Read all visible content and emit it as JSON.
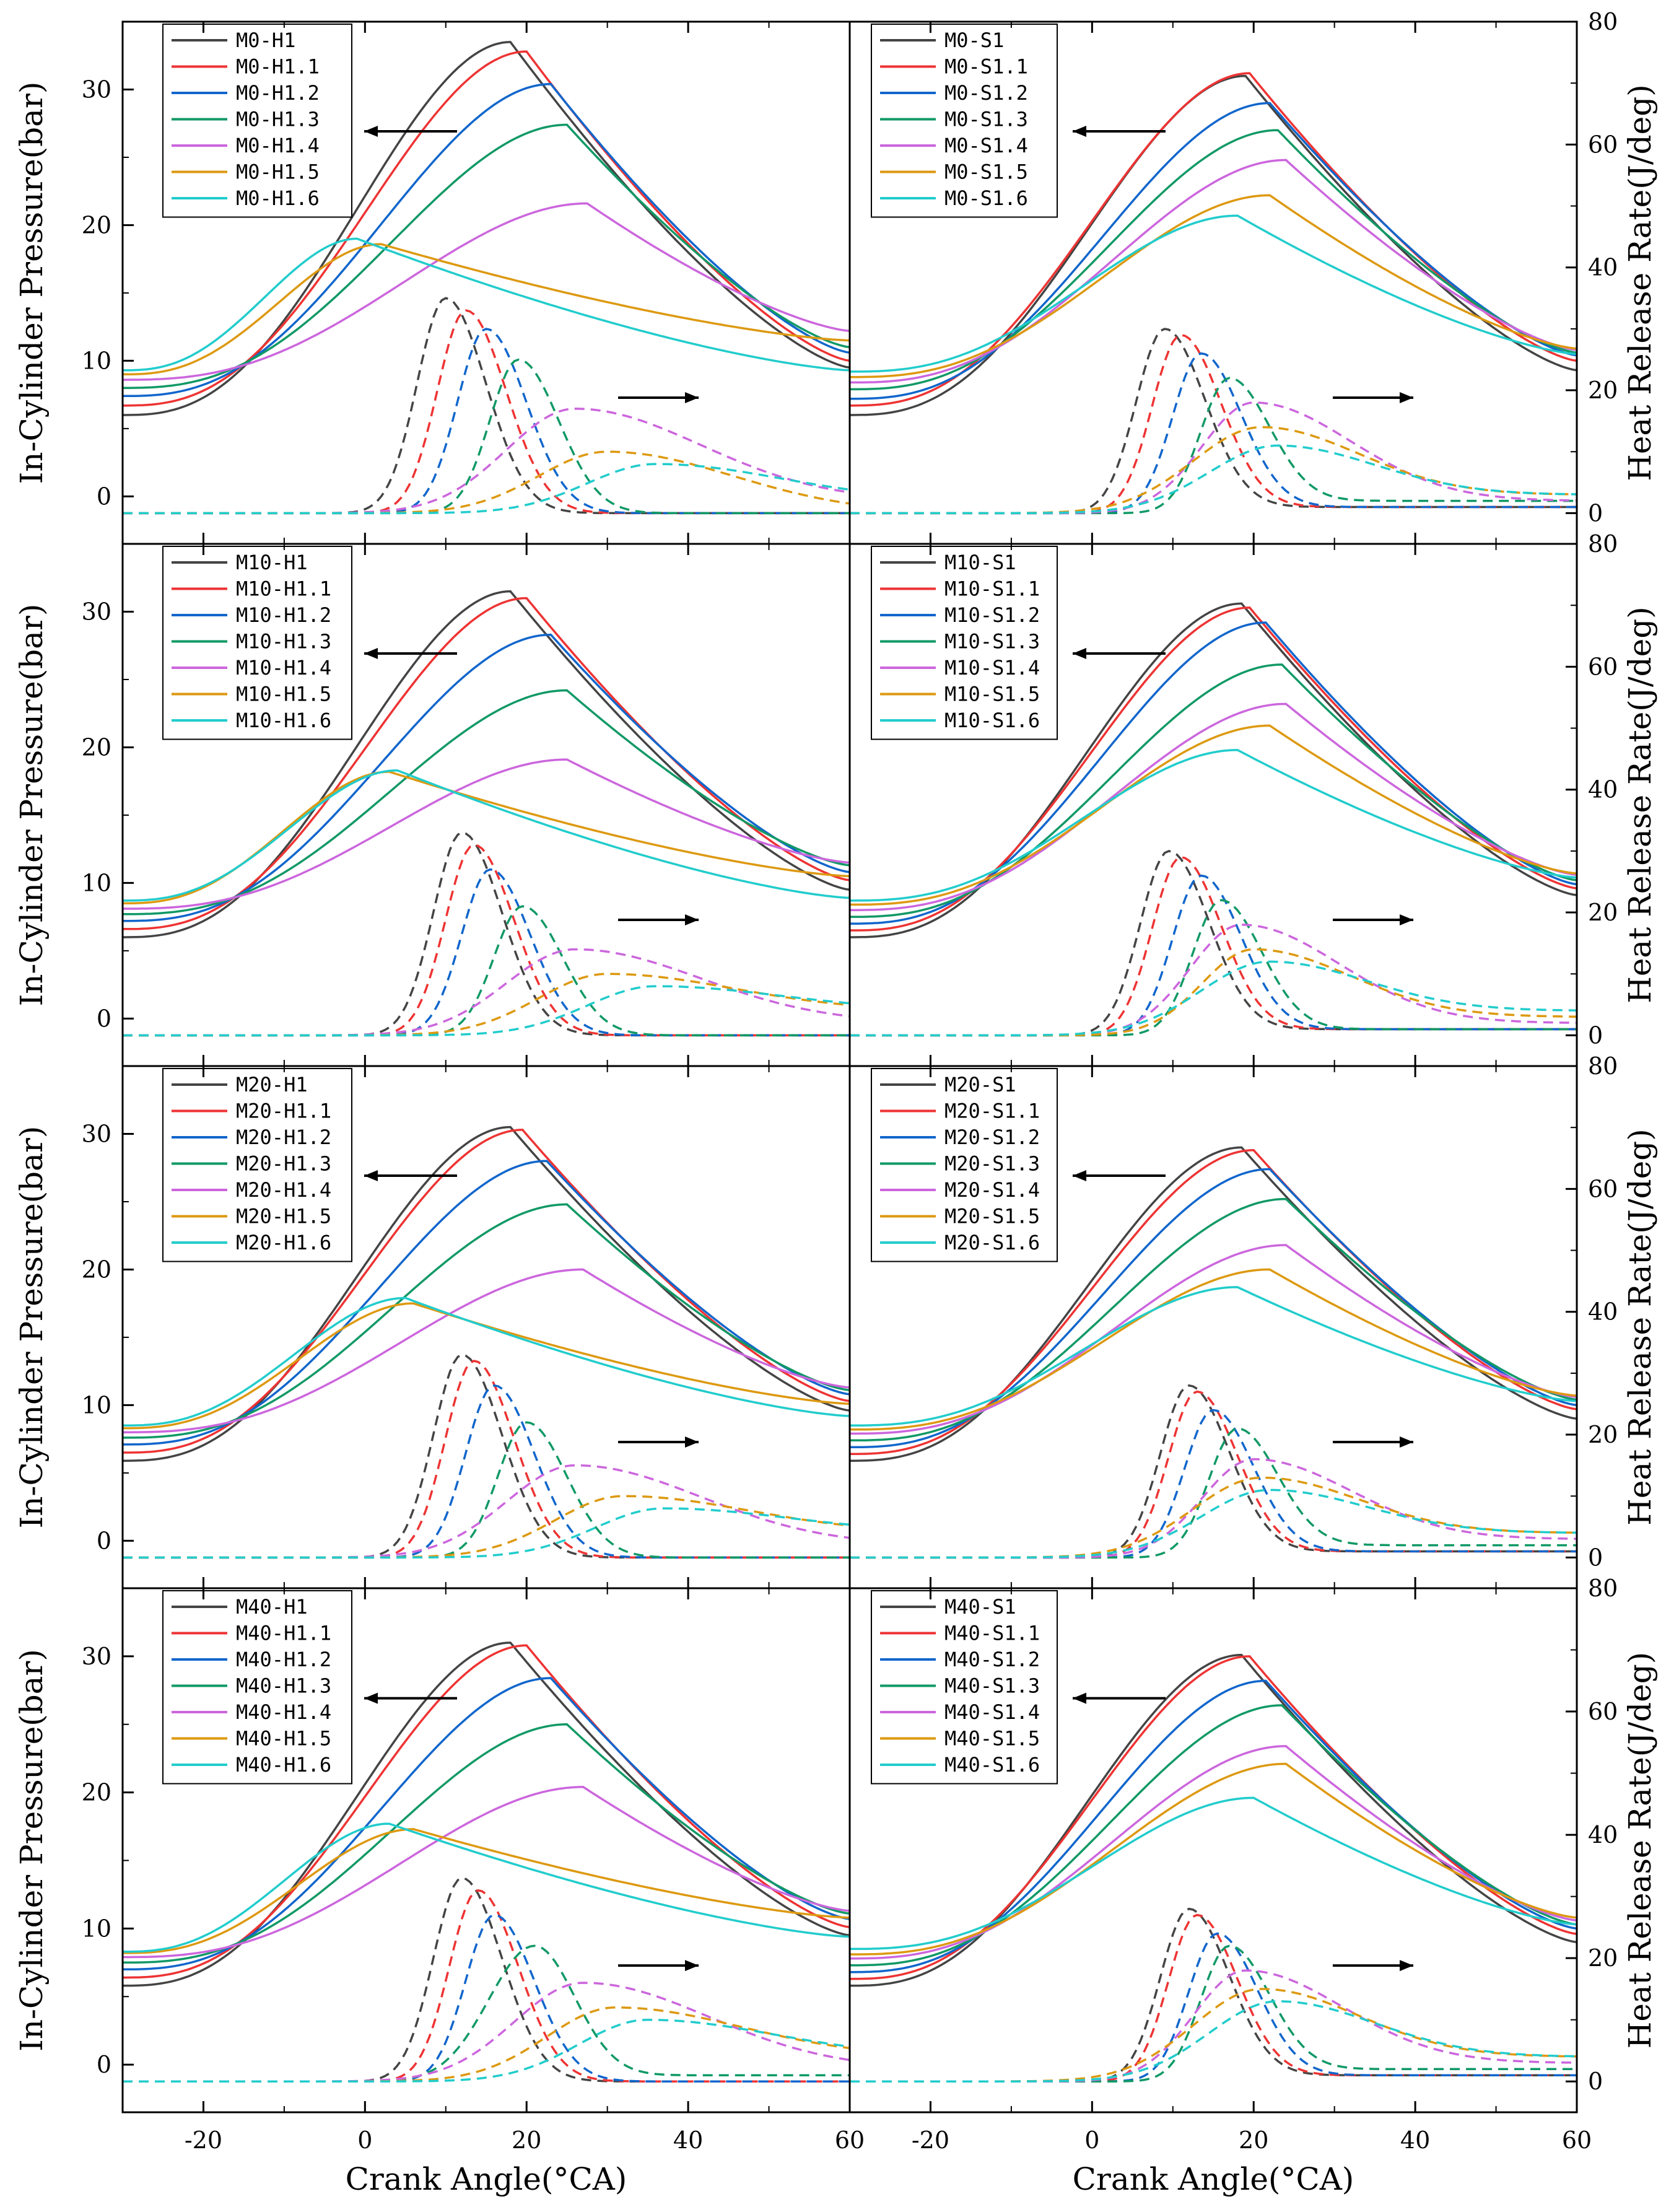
{
  "chart_data": {
    "type": "line",
    "xlabel": "Crank Angle(°CA)",
    "ylabel_left": "In-Cylinder Pressure(bar)",
    "ylabel_right": "Heat Release Rate(J/deg)",
    "xlim": [
      -30,
      60
    ],
    "ylim_left": [
      -3.5,
      35
    ],
    "ylim_right": [
      -5,
      80
    ],
    "x_ticks": [
      -20,
      0,
      20,
      40,
      60
    ],
    "x_tick_labels": [
      "-20",
      "0",
      "20",
      "40",
      "60"
    ],
    "y_left_ticks": [
      0,
      10,
      20,
      30
    ],
    "y_left_tick_labels": [
      "0",
      "10",
      "20",
      "30"
    ],
    "y_right_ticks": [
      0,
      20,
      40,
      60,
      80
    ],
    "y_right_tick_labels": [
      "0",
      "20",
      "40",
      "60",
      "80"
    ],
    "series_colors": [
      "#444444",
      "#ee3333",
      "#1166cc",
      "#119966",
      "#cc66dd",
      "#dd9911",
      "#22cccc"
    ],
    "panels": [
      {
        "id": "M0-H",
        "legend": [
          "M0-H1",
          "M0-H1.1",
          "M0-H1.2",
          "M0-H1.3",
          "M0-H1.4",
          "M0-H1.5",
          "M0-H1.6"
        ],
        "pressure": {
          "start": [
            6.0,
            6.7,
            7.4,
            8.0,
            8.6,
            9.0,
            9.3
          ],
          "peak_x": [
            18,
            20,
            23,
            25,
            27.5,
            2,
            -1
          ],
          "peak_y": [
            33.5,
            32.8,
            30.4,
            27.4,
            21.6,
            18.6,
            19.0
          ],
          "end": [
            9.5,
            10.0,
            10.6,
            11.0,
            12.2,
            11.5,
            9.3
          ]
        },
        "hrr": {
          "peak_x": [
            10,
            12.5,
            15,
            19,
            26,
            30,
            36
          ],
          "peak_y": [
            35,
            33,
            30,
            25,
            17,
            10,
            8
          ],
          "end": [
            0,
            0,
            0,
            0,
            2,
            0,
            2
          ]
        }
      },
      {
        "id": "M0-S",
        "legend": [
          "M0-S1",
          "M0-S1.1",
          "M0-S1.2",
          "M0-S1.3",
          "M0-S1.4",
          "M0-S1.5",
          "M0-S1.6"
        ],
        "pressure": {
          "start": [
            6.0,
            6.7,
            7.2,
            7.9,
            8.4,
            8.8,
            9.2
          ],
          "peak_x": [
            19,
            19.5,
            22,
            23,
            24,
            22,
            18
          ],
          "peak_y": [
            31.0,
            31.2,
            29.0,
            27.0,
            24.8,
            22.2,
            20.7
          ],
          "end": [
            9.3,
            10.0,
            10.4,
            10.6,
            10.8,
            10.9,
            10.5
          ]
        },
        "hrr": {
          "peak_x": [
            9,
            11,
            13.5,
            17,
            20,
            21,
            23
          ],
          "peak_y": [
            30,
            29,
            26,
            22,
            18,
            14,
            11
          ],
          "end": [
            1,
            1,
            1,
            2,
            2,
            3,
            3
          ]
        }
      },
      {
        "id": "M10-H",
        "legend": [
          "M10-H1",
          "M10-H1.1",
          "M10-H1.2",
          "M10-H1.3",
          "M10-H1.4",
          "M10-H1.5",
          "M10-H1.6"
        ],
        "pressure": {
          "start": [
            6.0,
            6.6,
            7.2,
            7.7,
            8.1,
            8.5,
            8.7
          ],
          "peak_x": [
            18,
            20,
            23,
            25,
            25,
            3,
            4
          ],
          "peak_y": [
            31.5,
            31.0,
            28.3,
            24.2,
            19.1,
            18.2,
            18.3
          ],
          "end": [
            9.5,
            10.2,
            10.8,
            11.3,
            11.5,
            10.5,
            8.9
          ]
        },
        "hrr": {
          "peak_x": [
            12,
            13.5,
            15.5,
            19.5,
            26,
            30,
            36
          ],
          "peak_y": [
            33,
            31,
            27,
            21,
            14,
            10,
            8
          ],
          "end": [
            0,
            0,
            0,
            0,
            2,
            4,
            4
          ]
        }
      },
      {
        "id": "M10-S",
        "legend": [
          "M10-S1",
          "M10-S1.1",
          "M10-S1.2",
          "M10-S1.3",
          "M10-S1.4",
          "M10-S1.5",
          "M10-S1.6"
        ],
        "pressure": {
          "start": [
            6.0,
            6.5,
            7.0,
            7.5,
            8.0,
            8.4,
            8.7
          ],
          "peak_x": [
            18.5,
            19.5,
            21.5,
            23.5,
            24,
            22,
            18
          ],
          "peak_y": [
            30.6,
            30.3,
            29.2,
            26.1,
            23.2,
            21.6,
            19.8
          ],
          "end": [
            9.1,
            9.6,
            9.9,
            10.2,
            10.6,
            10.7,
            10.4
          ]
        },
        "hrr": {
          "peak_x": [
            9.5,
            11,
            13.5,
            16,
            18.5,
            20,
            22
          ],
          "peak_y": [
            30,
            29,
            26,
            22,
            18,
            14,
            12
          ],
          "end": [
            1,
            1,
            1,
            1,
            2,
            3,
            4
          ]
        }
      },
      {
        "id": "M20-H",
        "legend": [
          "M20-H1",
          "M20-H1.1",
          "M20-H1.2",
          "M20-H1.3",
          "M20-H1.4",
          "M20-H1.5",
          "M20-H1.6"
        ],
        "pressure": {
          "start": [
            5.9,
            6.5,
            7.1,
            7.6,
            8.0,
            8.3,
            8.5
          ],
          "peak_x": [
            18,
            19.5,
            22.5,
            25,
            27,
            6,
            5
          ],
          "peak_y": [
            30.5,
            30.3,
            28.0,
            24.8,
            20.0,
            17.5,
            17.9
          ],
          "end": [
            9.6,
            10.3,
            10.8,
            11.1,
            11.3,
            10.1,
            9.2
          ]
        },
        "hrr": {
          "peak_x": [
            12,
            13.5,
            16,
            20,
            26,
            32,
            37
          ],
          "peak_y": [
            33,
            32,
            28,
            22,
            15,
            10,
            8
          ],
          "end": [
            0,
            0,
            0,
            0,
            2,
            4,
            4
          ]
        }
      },
      {
        "id": "M20-S",
        "legend": [
          "M20-S1",
          "M20-S1.1",
          "M20-S1.2",
          "M20-S1.3",
          "M20-S1.4",
          "M20-S1.5",
          "M20-S1.6"
        ],
        "pressure": {
          "start": [
            5.9,
            6.4,
            6.9,
            7.4,
            7.9,
            8.2,
            8.5
          ],
          "peak_x": [
            18.5,
            20,
            22,
            24,
            24,
            22,
            18
          ],
          "peak_y": [
            29.0,
            28.8,
            27.4,
            25.2,
            21.8,
            20.0,
            18.7
          ],
          "end": [
            9.0,
            9.7,
            10.0,
            10.4,
            10.6,
            10.7,
            10.3
          ]
        },
        "hrr": {
          "peak_x": [
            12,
            13,
            15,
            18,
            20,
            21,
            22
          ],
          "peak_y": [
            28,
            27,
            24,
            21,
            16,
            13,
            11
          ],
          "end": [
            1,
            1,
            1,
            2,
            3,
            4,
            4
          ]
        }
      },
      {
        "id": "M40-H",
        "legend": [
          "M40-H1",
          "M40-H1.1",
          "M40-H1.2",
          "M40-H1.3",
          "M40-H1.4",
          "M40-H1.5",
          "M40-H1.6"
        ],
        "pressure": {
          "start": [
            5.8,
            6.4,
            7.0,
            7.5,
            7.9,
            8.2,
            8.3
          ],
          "peak_x": [
            18,
            20,
            23,
            25,
            27,
            6,
            3
          ],
          "peak_y": [
            31.0,
            30.8,
            28.4,
            25.0,
            20.4,
            17.3,
            17.7
          ],
          "end": [
            9.5,
            10.1,
            10.7,
            11.1,
            11.3,
            10.8,
            9.4
          ]
        },
        "hrr": {
          "peak_x": [
            12,
            14,
            16,
            21,
            27,
            31,
            35
          ],
          "peak_y": [
            33,
            31,
            27,
            22,
            16,
            12,
            10
          ],
          "end": [
            0,
            0,
            0,
            1,
            2,
            4,
            4
          ]
        }
      },
      {
        "id": "M40-S",
        "legend": [
          "M40-S1",
          "M40-S1.1",
          "M40-S1.2",
          "M40-S1.3",
          "M40-S1.4",
          "M40-S1.5",
          "M40-S1.6"
        ],
        "pressure": {
          "start": [
            5.8,
            6.3,
            6.8,
            7.3,
            7.8,
            8.1,
            8.5
          ],
          "peak_x": [
            18.5,
            19.5,
            21.5,
            23.5,
            24,
            24,
            20
          ],
          "peak_y": [
            30.1,
            30.0,
            28.2,
            26.4,
            23.4,
            22.1,
            19.6
          ],
          "end": [
            9.0,
            9.6,
            10.0,
            10.3,
            10.6,
            10.8,
            10.3
          ]
        },
        "hrr": {
          "peak_x": [
            12,
            13,
            15.5,
            17,
            19,
            21,
            23
          ],
          "peak_y": [
            28,
            27,
            24,
            22,
            18,
            15,
            13
          ],
          "end": [
            1,
            1,
            1,
            2,
            3,
            4,
            4
          ]
        }
      }
    ]
  }
}
